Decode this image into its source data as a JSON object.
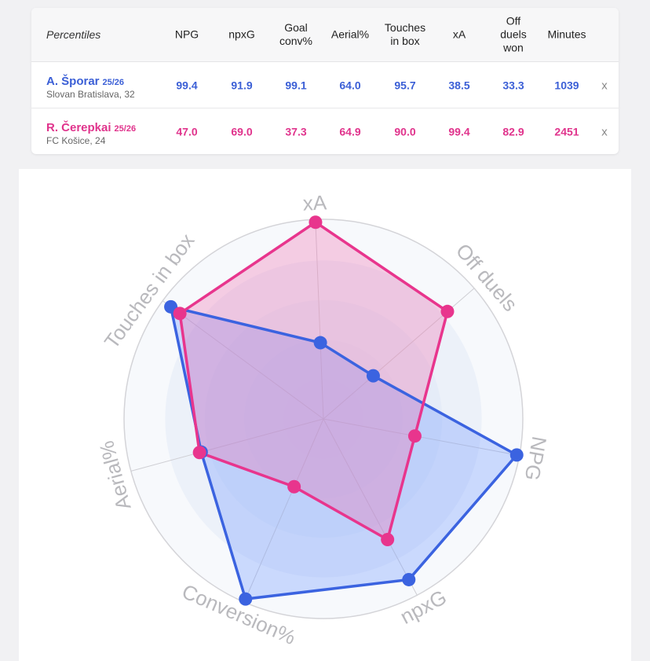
{
  "table": {
    "header": [
      "Percentiles",
      "NPG",
      "npxG",
      "Goal conv%",
      "Aerial%",
      "Touches in box",
      "xA",
      "Off duels won",
      "Minutes"
    ],
    "rows": [
      {
        "name": "A. Šporar",
        "season": "25/26",
        "team": "Slovan Bratislava, 32",
        "color": "#3b5fd6",
        "cells": [
          "99.4",
          "91.9",
          "99.1",
          "64.0",
          "95.7",
          "38.5",
          "33.3",
          "1039"
        ],
        "remove": "x"
      },
      {
        "name": "R. Čerepkai",
        "season": "25/26",
        "team": "FC Košice, 24",
        "color": "#e0338c",
        "cells": [
          "47.0",
          "69.0",
          "37.3",
          "64.9",
          "90.0",
          "99.4",
          "82.9",
          "2451"
        ],
        "remove": "x"
      }
    ]
  },
  "chart_data": {
    "type": "radar",
    "categories": [
      "xA",
      "Off duels",
      "NPG",
      "npxG",
      "Conversion%",
      "Aerial%",
      "Touches in box"
    ],
    "rlim": [
      0,
      100
    ],
    "series": [
      {
        "color": "#3b63e0",
        "values": [
          38.5,
          33.3,
          99.4,
          91.9,
          99.1,
          64.0,
          95.7
        ]
      },
      {
        "color": "#e8358d",
        "values": [
          99.4,
          82.9,
          47.0,
          69.0,
          37.3,
          64.9,
          90.0
        ]
      }
    ]
  }
}
